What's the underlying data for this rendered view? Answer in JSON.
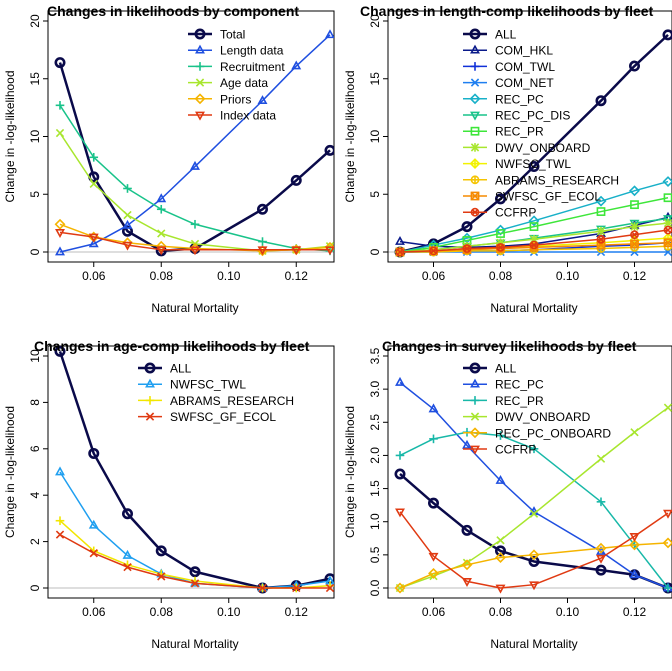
{
  "chart_data": [
    {
      "type": "line",
      "title": "Changes in likelihoods by component",
      "xlabel": "Natural Mortality",
      "ylabel": "Change in -log-likelihood",
      "xlim": [
        0.05,
        0.13
      ],
      "ylim": [
        0,
        20
      ],
      "xticks": [
        "0.06",
        "0.08",
        "0.10",
        "0.12"
      ],
      "yticks": [
        "0",
        "5",
        "10",
        "15",
        "20"
      ],
      "legend_position": "top-right",
      "x": [
        0.05,
        0.06,
        0.07,
        0.08,
        0.09,
        0.11,
        0.12,
        0.13
      ],
      "series": [
        {
          "name": "Total",
          "color": "#0a0a4a",
          "marker": "circle",
          "width": 2.5,
          "values": [
            16.4,
            6.5,
            1.8,
            0.1,
            0.3,
            3.7,
            6.2,
            8.8
          ]
        },
        {
          "name": "Length data",
          "color": "#1f4fe0",
          "marker": "triangle",
          "width": 1.5,
          "values": [
            0.0,
            0.7,
            2.3,
            4.6,
            7.4,
            13.1,
            16.1,
            18.8
          ]
        },
        {
          "name": "Recruitment",
          "color": "#19c38a",
          "marker": "plus",
          "width": 1.5,
          "values": [
            12.7,
            8.2,
            5.5,
            3.7,
            2.4,
            0.9,
            0.3,
            0.1
          ]
        },
        {
          "name": "Age data",
          "color": "#a8e62e",
          "marker": "cross",
          "width": 1.5,
          "values": [
            10.3,
            5.9,
            3.2,
            1.6,
            0.7,
            0.1,
            0.2,
            0.5
          ]
        },
        {
          "name": "Priors",
          "color": "#f5b400",
          "marker": "diamond",
          "width": 1.5,
          "values": [
            2.4,
            1.3,
            0.8,
            0.5,
            0.3,
            0.1,
            0.2,
            0.4
          ]
        },
        {
          "name": "Index data",
          "color": "#e03a12",
          "marker": "triangle-down",
          "width": 1.5,
          "values": [
            1.7,
            1.3,
            0.6,
            0.2,
            0.2,
            0.2,
            0.2,
            0.2
          ]
        }
      ]
    },
    {
      "type": "line",
      "title": "Changes in length-comp likelihoods by fleet",
      "xlabel": "Natural Mortality",
      "ylabel": "Change in -log-likelihood",
      "xlim": [
        0.05,
        0.13
      ],
      "ylim": [
        0,
        20
      ],
      "xticks": [
        "0.06",
        "0.08",
        "0.10",
        "0.12"
      ],
      "yticks": [
        "0",
        "5",
        "10",
        "15",
        "20"
      ],
      "legend_position": "top-right",
      "x": [
        0.05,
        0.06,
        0.07,
        0.08,
        0.09,
        0.11,
        0.12,
        0.13
      ],
      "series": [
        {
          "name": "ALL",
          "color": "#0a0a4a",
          "marker": "circle",
          "width": 2.5,
          "values": [
            0.0,
            0.7,
            2.2,
            4.6,
            7.4,
            13.1,
            16.1,
            18.8
          ]
        },
        {
          "name": "COM_HKL",
          "color": "#0a1a8a",
          "marker": "triangle",
          "width": 1.5,
          "values": [
            0.9,
            0.5,
            0.4,
            0.5,
            0.7,
            1.6,
            2.3,
            3.0
          ]
        },
        {
          "name": "COM_TWL",
          "color": "#1030d8",
          "marker": "plus",
          "width": 1.5,
          "values": [
            0.0,
            0.0,
            0.1,
            0.1,
            0.2,
            0.5,
            0.6,
            0.8
          ]
        },
        {
          "name": "COM_NET",
          "color": "#1f7ff0",
          "marker": "cross",
          "width": 1.5,
          "values": [
            0.0,
            0.0,
            0.0,
            0.0,
            0.0,
            0.0,
            0.0,
            0.0
          ]
        },
        {
          "name": "REC_PC",
          "color": "#18b0c8",
          "marker": "diamond",
          "width": 1.5,
          "values": [
            0.0,
            0.6,
            1.2,
            1.9,
            2.7,
            4.4,
            5.3,
            6.1
          ]
        },
        {
          "name": "REC_PC_DIS",
          "color": "#19c38a",
          "marker": "triangle-down",
          "width": 1.5,
          "values": [
            0.0,
            0.2,
            0.5,
            0.8,
            1.2,
            2.0,
            2.5,
            2.9
          ]
        },
        {
          "name": "REC_PR",
          "color": "#3ee63a",
          "marker": "square",
          "width": 1.5,
          "values": [
            0.0,
            0.4,
            1.0,
            1.6,
            2.2,
            3.5,
            4.1,
            4.7
          ]
        },
        {
          "name": "DWV_ONBOARD",
          "color": "#a8e62e",
          "marker": "star",
          "width": 1.5,
          "values": [
            0.0,
            0.2,
            0.5,
            0.8,
            1.1,
            1.8,
            2.2,
            2.5
          ]
        },
        {
          "name": "NWFSC_TWL",
          "color": "#f2f200",
          "marker": "diamond-plus",
          "width": 1.5,
          "values": [
            0.0,
            0.1,
            0.2,
            0.3,
            0.5,
            0.8,
            1.0,
            1.2
          ]
        },
        {
          "name": "ABRAMS_RESEARCH",
          "color": "#f5c400",
          "marker": "circle-plus",
          "width": 1.5,
          "values": [
            0.0,
            0.0,
            0.1,
            0.1,
            0.2,
            0.3,
            0.4,
            0.5
          ]
        },
        {
          "name": "SWFSC_GF_ECOL",
          "color": "#f58a00",
          "marker": "square-cross",
          "width": 1.5,
          "values": [
            0.0,
            0.1,
            0.2,
            0.3,
            0.4,
            0.6,
            0.7,
            0.8
          ]
        },
        {
          "name": "CCFRP",
          "color": "#e03a12",
          "marker": "circle-cross",
          "width": 1.5,
          "values": [
            0.0,
            0.1,
            0.3,
            0.4,
            0.6,
            1.1,
            1.5,
            1.9
          ]
        }
      ]
    },
    {
      "type": "line",
      "title": "Changes in age-comp likelihoods by fleet",
      "xlabel": "Natural Mortality",
      "ylabel": "Change in -log-likelihood",
      "xlim": [
        0.05,
        0.13
      ],
      "ylim": [
        0,
        10
      ],
      "xticks": [
        "0.06",
        "0.08",
        "0.10",
        "0.12"
      ],
      "yticks": [
        "0",
        "2",
        "4",
        "6",
        "8",
        "10"
      ],
      "legend_position": "top-right",
      "x": [
        0.05,
        0.06,
        0.07,
        0.08,
        0.09,
        0.11,
        0.12,
        0.13
      ],
      "series": [
        {
          "name": "ALL",
          "color": "#0a0a4a",
          "marker": "circle",
          "width": 2.5,
          "values": [
            10.2,
            5.8,
            3.2,
            1.6,
            0.7,
            0.0,
            0.1,
            0.4
          ]
        },
        {
          "name": "NWFSC_TWL",
          "color": "#1f9ff0",
          "marker": "triangle",
          "width": 1.5,
          "values": [
            5.0,
            2.7,
            1.4,
            0.6,
            0.2,
            0.0,
            0.1,
            0.3
          ]
        },
        {
          "name": "ABRAMS_RESEARCH",
          "color": "#f2e600",
          "marker": "plus",
          "width": 1.5,
          "values": [
            2.9,
            1.6,
            1.0,
            0.6,
            0.3,
            0.0,
            0.0,
            0.1
          ]
        },
        {
          "name": "SWFSC_GF_ECOL",
          "color": "#e03a12",
          "marker": "cross",
          "width": 1.5,
          "values": [
            2.3,
            1.5,
            0.9,
            0.5,
            0.2,
            0.0,
            0.0,
            0.0
          ]
        }
      ]
    },
    {
      "type": "line",
      "title": "Changes in survey likelihoods by fleet",
      "xlabel": "Natural Mortality",
      "ylabel": "Change in -log-likelihood",
      "xlim": [
        0.05,
        0.13
      ],
      "ylim": [
        0,
        3.5
      ],
      "xticks": [
        "0.06",
        "0.08",
        "0.10",
        "0.12"
      ],
      "yticks": [
        "0.0",
        "0.5",
        "1.0",
        "1.5",
        "2.0",
        "2.5",
        "3.0",
        "3.5"
      ],
      "legend_position": "top-right",
      "x": [
        0.05,
        0.06,
        0.07,
        0.08,
        0.09,
        0.11,
        0.12,
        0.13
      ],
      "series": [
        {
          "name": "ALL",
          "color": "#0a0a4a",
          "marker": "circle",
          "width": 2.5,
          "values": [
            1.72,
            1.28,
            0.87,
            0.56,
            0.4,
            0.27,
            0.2,
            0.0
          ]
        },
        {
          "name": "REC_PC",
          "color": "#1f4fe0",
          "marker": "triangle",
          "width": 1.5,
          "values": [
            3.1,
            2.7,
            2.15,
            1.62,
            1.15,
            0.55,
            0.2,
            0.0
          ]
        },
        {
          "name": "REC_PR",
          "color": "#18b8a8",
          "marker": "plus",
          "width": 1.5,
          "values": [
            2.0,
            2.25,
            2.35,
            2.3,
            2.1,
            1.3,
            0.65,
            0.0
          ]
        },
        {
          "name": "DWV_ONBOARD",
          "color": "#a8e62e",
          "marker": "cross",
          "width": 1.5,
          "values": [
            0.0,
            0.18,
            0.38,
            0.72,
            1.12,
            1.95,
            2.35,
            2.72
          ]
        },
        {
          "name": "REC_PC_ONBOARD",
          "color": "#f5b400",
          "marker": "diamond",
          "width": 1.5,
          "values": [
            0.0,
            0.22,
            0.35,
            0.46,
            0.5,
            0.6,
            0.65,
            0.68
          ]
        },
        {
          "name": "CCFRP",
          "color": "#e03a12",
          "marker": "triangle-down",
          "width": 1.5,
          "values": [
            1.15,
            0.48,
            0.1,
            0.0,
            0.05,
            0.45,
            0.78,
            1.13
          ]
        }
      ]
    }
  ]
}
